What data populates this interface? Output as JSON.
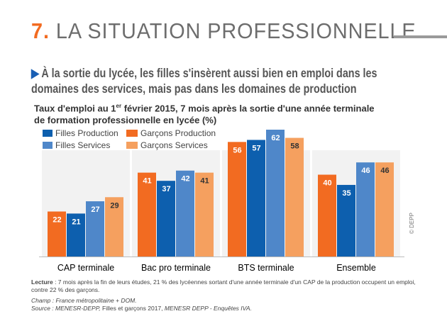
{
  "header": {
    "number": "7.",
    "title": "LA SITUATION PROFESSIONNELLE"
  },
  "subtitle": "À la sortie du lycée, les filles s'insèrent aussi bien en emploi dans les domaines des services, mais pas dans les domaines de production",
  "chart_data": {
    "type": "bar",
    "title_line1_a": "Taux d'emploi au 1",
    "title_sup": "er",
    "title_line1_b": " février 2015, 7 mois après la sortie d'une année terminale",
    "title_line2": "de formation professionnelle en lycée (%)",
    "categories": [
      "CAP terminale",
      "Bac pro terminale",
      "BTS terminale",
      "Ensemble"
    ],
    "series": [
      {
        "name": "Garçons Production",
        "color": "#f26b21",
        "values": [
          22,
          41,
          56,
          40
        ]
      },
      {
        "name": "Filles Production",
        "color": "#0d5fae",
        "values": [
          21,
          37,
          57,
          35
        ]
      },
      {
        "name": "Filles Services",
        "color": "#4f87c9",
        "values": [
          27,
          42,
          62,
          46
        ]
      },
      {
        "name": "Garçons Services",
        "color": "#f5a05f",
        "values": [
          29,
          41,
          58,
          46
        ]
      }
    ],
    "legend_order": [
      "Filles Production",
      "Garçons Production",
      "Filles Services",
      "Garçons Services"
    ],
    "ylim": [
      0,
      65
    ],
    "legend": "top-left"
  },
  "notes": {
    "lecture_label": "Lecture",
    "lecture": " : 7 mois après la fin de leurs études, 21 % des lycéennes sortant d'une année terminale d'un CAP de la production occupent un emploi, contre 22 % des garçons.",
    "champ": "Champ : France métropolitaine + DOM.",
    "source_a": "Source : MENESR-DEPP,",
    "source_b": " Filles et garçons 2017, ",
    "source_c": "MENESR DEPP - Enquêtes IVA."
  },
  "copyright": "© DEPP"
}
